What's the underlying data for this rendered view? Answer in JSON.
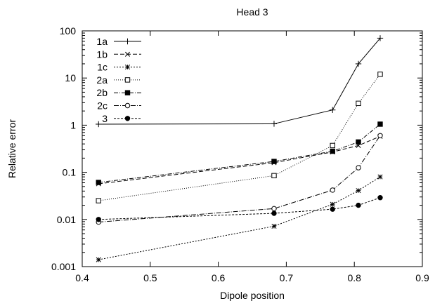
{
  "chart_data": {
    "type": "line",
    "title": "Head 3",
    "xlabel": "Dipole position",
    "ylabel": "Relative error",
    "xlim": [
      0.4,
      0.9
    ],
    "ylim": [
      0.001,
      100
    ],
    "yscale": "log",
    "x_ticks": [
      "0.4",
      "0.5",
      "0.6",
      "0.7",
      "0.8",
      "0.9"
    ],
    "y_ticks": [
      "0.001",
      "0.01",
      "0.1",
      "1",
      "10",
      "100"
    ],
    "grid": false,
    "legend_position": "top-left",
    "x": [
      0.424,
      0.682,
      0.768,
      0.806,
      0.838
    ],
    "series": [
      {
        "name": "1a",
        "marker": "plus",
        "dash": "solid",
        "values": [
          1.05,
          1.07,
          2.1,
          20,
          70
        ]
      },
      {
        "name": "1b",
        "marker": "cross",
        "dash": "6,3",
        "values": [
          0.057,
          0.16,
          0.27,
          0.37,
          0.58
        ]
      },
      {
        "name": "1c",
        "marker": "star",
        "dash": "2,2",
        "values": [
          0.0014,
          0.0072,
          0.021,
          0.041,
          0.08
        ]
      },
      {
        "name": "2a",
        "marker": "square-open",
        "dash": "1,2",
        "values": [
          0.025,
          0.085,
          0.37,
          2.9,
          12
        ]
      },
      {
        "name": "2b",
        "marker": "square-filled",
        "dash": "6,2,1,2",
        "values": [
          0.061,
          0.17,
          0.28,
          0.44,
          1.05
        ]
      },
      {
        "name": "2c",
        "marker": "circle-open",
        "dash": "7,2,1,2",
        "values": [
          0.0088,
          0.017,
          0.042,
          0.125,
          0.6
        ]
      },
      {
        "name": "3",
        "marker": "circle-filled",
        "dash": "3,2",
        "values": [
          0.01,
          0.0135,
          0.0165,
          0.02,
          0.029
        ]
      }
    ]
  }
}
